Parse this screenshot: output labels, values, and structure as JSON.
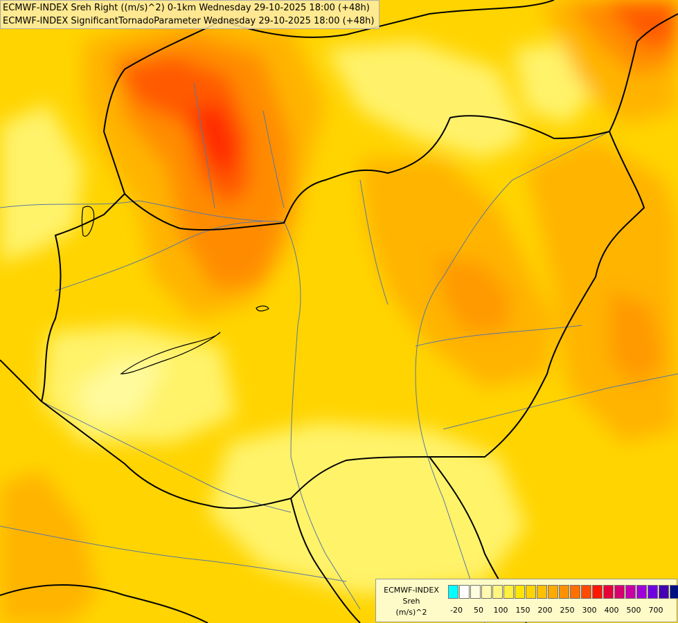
{
  "header": {
    "line1": "ECMWF-INDEX Sreh Right ((m/s)^2) 0-1km Wednesday 29-10-2025 18:00 (+48h)",
    "line2": "ECMWF-INDEX SignificantTornadoParameter Wednesday 29-10-2025 18:00 (+48h)"
  },
  "legend": {
    "title": "ECMWF-INDEX",
    "parameter": "Sreh",
    "unit": "(m/s)^2",
    "swatch_colors": [
      "#00ffff",
      "#ffffff",
      "#fffde0",
      "#fffab0",
      "#fff680",
      "#ffef40",
      "#ffe600",
      "#ffd400",
      "#ffc000",
      "#ffaa00",
      "#ff9000",
      "#ff7000",
      "#ff4a00",
      "#ff1800",
      "#e8003a",
      "#d80070",
      "#c800a8",
      "#a000d8",
      "#7000e0",
      "#4400b0",
      "#001080"
    ],
    "tick_labels": [
      "-20",
      "50",
      "100",
      "150",
      "200",
      "250",
      "300",
      "400",
      "500",
      "700"
    ]
  },
  "colors": {
    "field_base": "#ffd400",
    "field_light": "#fff46a",
    "field_pale": "#fffa9c",
    "field_orange": "#ffb400",
    "field_deep_orange": "#ff8c00",
    "field_red_orange": "#ff5a00",
    "field_red": "#ff2a00",
    "country_border": "#000000",
    "river": "#5a78a0"
  }
}
